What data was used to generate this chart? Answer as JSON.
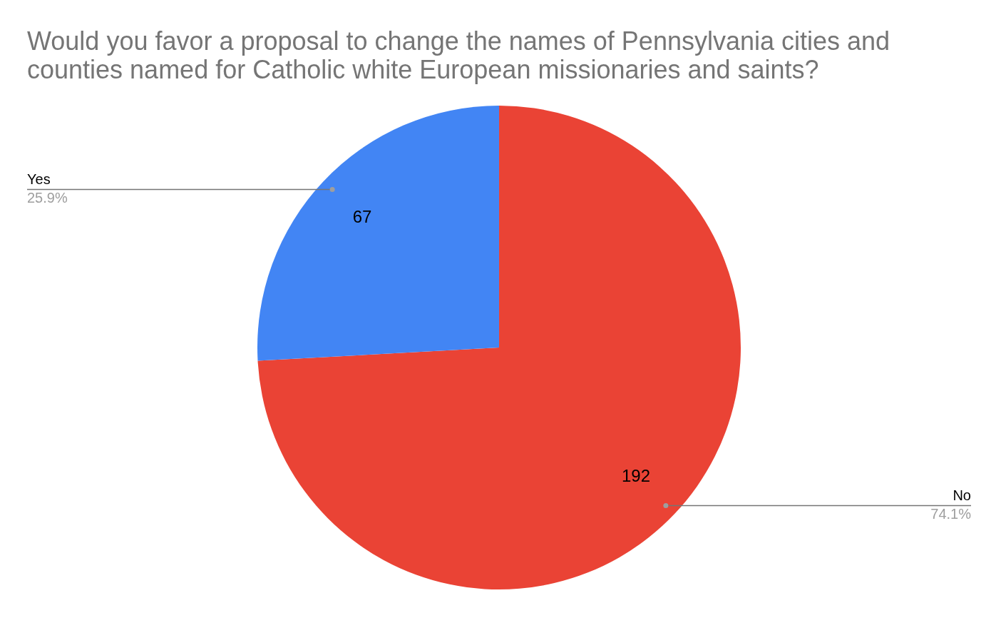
{
  "chart_data": {
    "type": "pie",
    "title": "Would you favor a proposal to change the names of Pennsylvania cities and counties named for Catholic white European missionaries and saints?",
    "categories": [
      "No",
      "Yes"
    ],
    "values": [
      192,
      67
    ],
    "colors": [
      "#ea4335",
      "#4285f4"
    ],
    "data_labels": true,
    "legend": false,
    "annotations": [
      {
        "text": "74.1%",
        "x": "No"
      },
      {
        "text": "25.9%",
        "x": "Yes"
      }
    ]
  }
}
